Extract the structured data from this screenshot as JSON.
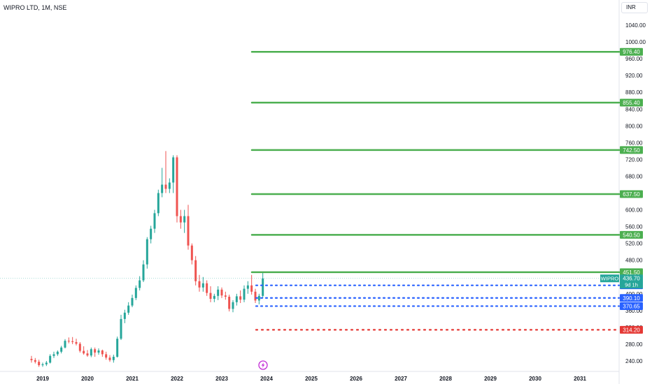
{
  "header": {
    "title": "WIPRO LTD, 1M, NSE",
    "currency": "INR"
  },
  "colors": {
    "up": "#26a69a",
    "down": "#ef5350",
    "target": "#4caf50",
    "support": "#2962ff",
    "stop": "#e53935",
    "price_line": "#26a69a",
    "event": "#c22bd6",
    "axis_text": "#131722",
    "grid": "#e0e3eb"
  },
  "event_icon": "lightning-icon",
  "chart_data": {
    "type": "candlestick",
    "y_axis": {
      "min": 220,
      "max": 1060,
      "ticks": [
        "240.00",
        "280.00",
        "320.00",
        "360.00",
        "400.00",
        "440.00",
        "480.00",
        "520.00",
        "560.00",
        "600.00",
        "640.00",
        "680.00",
        "720.00",
        "760.00",
        "800.00",
        "840.00",
        "880.00",
        "920.00",
        "960.00",
        "1000.00",
        "1040.00"
      ]
    },
    "x_axis": {
      "labels": [
        "2019",
        "2020",
        "2021",
        "2022",
        "2023",
        "2024",
        "2025",
        "2026",
        "2027",
        "2028",
        "2029",
        "2030",
        "2031"
      ]
    },
    "candles": [
      {
        "t": "2018-10",
        "o": 245,
        "h": 252,
        "l": 236,
        "c": 242
      },
      {
        "t": "2018-11",
        "o": 242,
        "h": 247,
        "l": 234,
        "c": 238
      },
      {
        "t": "2018-12",
        "o": 238,
        "h": 243,
        "l": 226,
        "c": 230
      },
      {
        "t": "2019-01",
        "o": 230,
        "h": 236,
        "l": 226,
        "c": 232
      },
      {
        "t": "2019-02",
        "o": 232,
        "h": 240,
        "l": 228,
        "c": 236
      },
      {
        "t": "2019-03",
        "o": 236,
        "h": 256,
        "l": 234,
        "c": 252
      },
      {
        "t": "2019-04",
        "o": 252,
        "h": 262,
        "l": 247,
        "c": 256
      },
      {
        "t": "2019-05",
        "o": 256,
        "h": 265,
        "l": 252,
        "c": 262
      },
      {
        "t": "2019-06",
        "o": 262,
        "h": 276,
        "l": 258,
        "c": 272
      },
      {
        "t": "2019-07",
        "o": 272,
        "h": 292,
        "l": 270,
        "c": 288
      },
      {
        "t": "2019-08",
        "o": 288,
        "h": 296,
        "l": 282,
        "c": 287
      },
      {
        "t": "2019-09",
        "o": 287,
        "h": 297,
        "l": 280,
        "c": 285
      },
      {
        "t": "2019-10",
        "o": 285,
        "h": 293,
        "l": 277,
        "c": 281
      },
      {
        "t": "2019-11",
        "o": 281,
        "h": 285,
        "l": 260,
        "c": 264
      },
      {
        "t": "2019-12",
        "o": 264,
        "h": 275,
        "l": 255,
        "c": 258
      },
      {
        "t": "2020-01",
        "o": 258,
        "h": 266,
        "l": 250,
        "c": 253
      },
      {
        "t": "2020-02",
        "o": 253,
        "h": 272,
        "l": 249,
        "c": 268
      },
      {
        "t": "2020-03",
        "o": 268,
        "h": 272,
        "l": 250,
        "c": 260
      },
      {
        "t": "2020-04",
        "o": 260,
        "h": 270,
        "l": 255,
        "c": 265
      },
      {
        "t": "2020-05",
        "o": 265,
        "h": 267,
        "l": 250,
        "c": 256
      },
      {
        "t": "2020-06",
        "o": 256,
        "h": 262,
        "l": 243,
        "c": 248
      },
      {
        "t": "2020-07",
        "o": 248,
        "h": 254,
        "l": 238,
        "c": 242
      },
      {
        "t": "2020-08",
        "o": 242,
        "h": 255,
        "l": 236,
        "c": 250
      },
      {
        "t": "2020-09",
        "o": 250,
        "h": 298,
        "l": 248,
        "c": 293
      },
      {
        "t": "2020-10",
        "o": 293,
        "h": 350,
        "l": 290,
        "c": 340
      },
      {
        "t": "2020-11",
        "o": 340,
        "h": 362,
        "l": 330,
        "c": 355
      },
      {
        "t": "2020-12",
        "o": 355,
        "h": 380,
        "l": 350,
        "c": 372
      },
      {
        "t": "2021-01",
        "o": 372,
        "h": 398,
        "l": 368,
        "c": 390
      },
      {
        "t": "2021-02",
        "o": 390,
        "h": 420,
        "l": 385,
        "c": 414
      },
      {
        "t": "2021-03",
        "o": 414,
        "h": 442,
        "l": 408,
        "c": 432
      },
      {
        "t": "2021-04",
        "o": 432,
        "h": 480,
        "l": 428,
        "c": 470
      },
      {
        "t": "2021-05",
        "o": 470,
        "h": 535,
        "l": 460,
        "c": 530
      },
      {
        "t": "2021-06",
        "o": 530,
        "h": 562,
        "l": 520,
        "c": 555
      },
      {
        "t": "2021-07",
        "o": 555,
        "h": 600,
        "l": 545,
        "c": 592
      },
      {
        "t": "2021-08",
        "o": 592,
        "h": 648,
        "l": 585,
        "c": 640
      },
      {
        "t": "2021-09",
        "o": 640,
        "h": 700,
        "l": 630,
        "c": 660
      },
      {
        "t": "2021-10",
        "o": 660,
        "h": 740,
        "l": 640,
        "c": 650
      },
      {
        "t": "2021-11",
        "o": 650,
        "h": 675,
        "l": 640,
        "c": 665
      },
      {
        "t": "2021-12",
        "o": 665,
        "h": 730,
        "l": 640,
        "c": 725
      },
      {
        "t": "2022-01",
        "o": 725,
        "h": 730,
        "l": 570,
        "c": 585
      },
      {
        "t": "2022-02",
        "o": 585,
        "h": 600,
        "l": 555,
        "c": 570
      },
      {
        "t": "2022-03",
        "o": 570,
        "h": 600,
        "l": 545,
        "c": 585
      },
      {
        "t": "2022-04",
        "o": 585,
        "h": 612,
        "l": 505,
        "c": 515
      },
      {
        "t": "2022-05",
        "o": 515,
        "h": 520,
        "l": 470,
        "c": 480
      },
      {
        "t": "2022-06",
        "o": 480,
        "h": 490,
        "l": 420,
        "c": 430
      },
      {
        "t": "2022-07",
        "o": 430,
        "h": 445,
        "l": 405,
        "c": 415
      },
      {
        "t": "2022-08",
        "o": 415,
        "h": 440,
        "l": 405,
        "c": 425
      },
      {
        "t": "2022-09",
        "o": 425,
        "h": 432,
        "l": 395,
        "c": 402
      },
      {
        "t": "2022-10",
        "o": 402,
        "h": 418,
        "l": 380,
        "c": 388
      },
      {
        "t": "2022-11",
        "o": 388,
        "h": 400,
        "l": 380,
        "c": 395
      },
      {
        "t": "2022-12",
        "o": 395,
        "h": 418,
        "l": 385,
        "c": 410
      },
      {
        "t": "2023-01",
        "o": 410,
        "h": 415,
        "l": 390,
        "c": 396
      },
      {
        "t": "2023-02",
        "o": 396,
        "h": 405,
        "l": 386,
        "c": 393
      },
      {
        "t": "2023-03",
        "o": 393,
        "h": 398,
        "l": 358,
        "c": 364
      },
      {
        "t": "2023-04",
        "o": 364,
        "h": 385,
        "l": 356,
        "c": 380
      },
      {
        "t": "2023-05",
        "o": 380,
        "h": 400,
        "l": 372,
        "c": 394
      },
      {
        "t": "2023-06",
        "o": 394,
        "h": 408,
        "l": 378,
        "c": 386
      },
      {
        "t": "2023-07",
        "o": 386,
        "h": 420,
        "l": 380,
        "c": 412
      },
      {
        "t": "2023-08",
        "o": 412,
        "h": 430,
        "l": 400,
        "c": 420
      },
      {
        "t": "2023-09",
        "o": 420,
        "h": 445,
        "l": 398,
        "c": 405
      },
      {
        "t": "2023-10",
        "o": 405,
        "h": 412,
        "l": 378,
        "c": 384
      },
      {
        "t": "2023-11",
        "o": 384,
        "h": 400,
        "l": 375,
        "c": 395
      },
      {
        "t": "2023-12",
        "o": 395,
        "h": 452,
        "l": 390,
        "c": 436.7
      }
    ],
    "levels": [
      {
        "type": "target",
        "value": 976.4,
        "label": "976.40"
      },
      {
        "type": "target",
        "value": 855.4,
        "label": "855.40"
      },
      {
        "type": "target",
        "value": 742.5,
        "label": "742.50"
      },
      {
        "type": "target",
        "value": 637.5,
        "label": "637.50"
      },
      {
        "type": "target",
        "value": 540.5,
        "label": "540.50"
      },
      {
        "type": "target",
        "value": 451.5,
        "label": "451.50"
      },
      {
        "type": "support",
        "value": 420.15,
        "label": "420.15"
      },
      {
        "type": "support",
        "value": 390.1,
        "label": "390.10"
      },
      {
        "type": "support",
        "value": 370.65,
        "label": "370.65"
      },
      {
        "type": "stop",
        "value": 314.2,
        "label": "314.20"
      }
    ],
    "last_price": {
      "symbol": "WIPRO",
      "value": 436.7,
      "label": "436.70",
      "countdown": "9d 1h"
    }
  }
}
